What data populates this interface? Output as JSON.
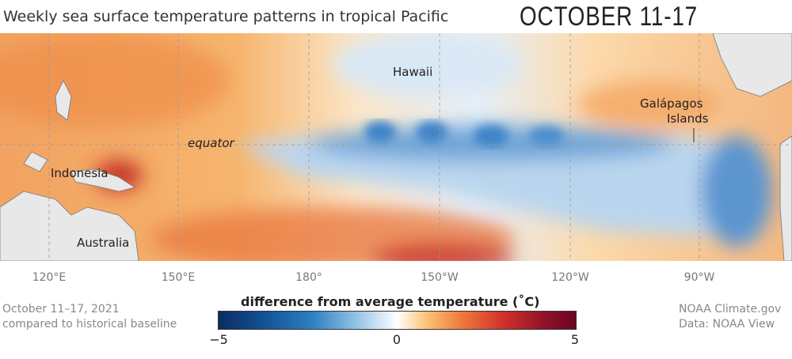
{
  "title": "Weekly sea surface temperature patterns in tropical Pacific",
  "period_heading": "OCTOBER 11-17",
  "map_labels": {
    "hawaii": "Hawaii",
    "galapagos_line1": "Galápagos",
    "galapagos_line2": "Islands",
    "equator": "equator",
    "indonesia": "Indonesia",
    "australia": "Australia"
  },
  "longitude_ticks": [
    "120°E",
    "150°E",
    "180°",
    "150°W",
    "120°W",
    "90°W"
  ],
  "footer_left": {
    "line1": "October 11–17, 2021",
    "line2": "compared to historical baseline"
  },
  "footer_right": {
    "line1": "NOAA Climate.gov",
    "line2": "Data: NOAA View"
  },
  "colorbar": {
    "title": "difference from average temperature (˚C)",
    "min_label": "−5",
    "mid_label": "0",
    "max_label": "5",
    "colors": [
      "#0b2c63",
      "#2b7fc0",
      "#ffffff",
      "#ef7a3b",
      "#6a0424"
    ]
  }
}
